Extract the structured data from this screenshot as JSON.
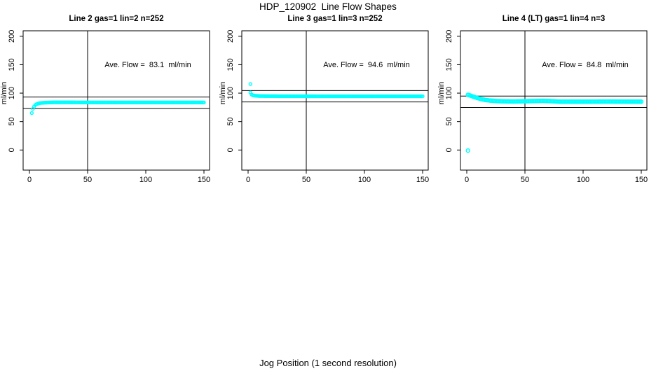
{
  "figure": {
    "title": "HDP_120902  Line Flow Shapes",
    "xlabel": "Jog Position (1 second resolution)"
  },
  "chart_data": {
    "type": "scatter",
    "title": "HDP_120902  Line Flow Shapes",
    "xlabel": "Jog Position (1 second resolution)",
    "ylabel": "ml/min",
    "x_ticks": [
      0,
      50,
      100,
      150
    ],
    "y_ticks": [
      0,
      50,
      100,
      150,
      200
    ],
    "xlim": [
      -5,
      155
    ],
    "ylim": [
      -35,
      210
    ],
    "grid": false,
    "legend": "none",
    "marker": "open-circle",
    "marker_color": "#00FFFF",
    "axis_color": "#000000",
    "background_color": "#FFFFFF",
    "panels": [
      {
        "title": "Line 2 gas=1 lin=2 n=252",
        "annotation": "Ave. Flow =  83.1  ml/min",
        "ave_flow_ml_min": 83.1,
        "n": 252,
        "vline_x": 50,
        "hlines": [
          93.1,
          73.1
        ],
        "marker_r": 2,
        "series_keypoints": [
          [
            2,
            65
          ],
          [
            3,
            72.5
          ],
          [
            4,
            76.5
          ],
          [
            5,
            79
          ],
          [
            6,
            80.5
          ],
          [
            8,
            82
          ],
          [
            10,
            82.8
          ],
          [
            14,
            83.3
          ],
          [
            20,
            83.8
          ],
          [
            30,
            83.8
          ],
          [
            60,
            83.6
          ],
          [
            100,
            83.6
          ],
          [
            150,
            83.6
          ]
        ],
        "outliers": []
      },
      {
        "title": "Line 3 gas=1 lin=3 n=252",
        "annotation": "Ave. Flow =  94.6  ml/min",
        "ave_flow_ml_min": 94.6,
        "n": 252,
        "vline_x": 50,
        "hlines": [
          104.6,
          84.6
        ],
        "marker_r": 2,
        "series_keypoints": [
          [
            2,
            101
          ],
          [
            3,
            97.5
          ],
          [
            4,
            96.3
          ],
          [
            6,
            95.5
          ],
          [
            9,
            95
          ],
          [
            15,
            94.8
          ],
          [
            30,
            94.6
          ],
          [
            60,
            94.5
          ],
          [
            100,
            94.5
          ],
          [
            150,
            94.5
          ]
        ],
        "outliers": [
          [
            2,
            116
          ]
        ]
      },
      {
        "title": "Line 4 (LT) gas=1 lin=4 n=3",
        "annotation": "Ave. Flow =  84.8  ml/min",
        "ave_flow_ml_min": 84.8,
        "n": 3,
        "vline_x": 50,
        "hlines": [
          94.8,
          74.8
        ],
        "marker_r": 2.5,
        "series_keypoints": [
          [
            1,
            97
          ],
          [
            2,
            96.5
          ],
          [
            4,
            95
          ],
          [
            6,
            93.5
          ],
          [
            9,
            91.5
          ],
          [
            12,
            89.8
          ],
          [
            16,
            88
          ],
          [
            20,
            87
          ],
          [
            25,
            86.2
          ],
          [
            30,
            85.7
          ],
          [
            40,
            85.3
          ],
          [
            55,
            86
          ],
          [
            65,
            86.5
          ],
          [
            72,
            86
          ],
          [
            80,
            85
          ],
          [
            100,
            85
          ],
          [
            120,
            85.2
          ],
          [
            150,
            85
          ]
        ],
        "outliers": [
          [
            1,
            -1
          ]
        ]
      }
    ]
  }
}
